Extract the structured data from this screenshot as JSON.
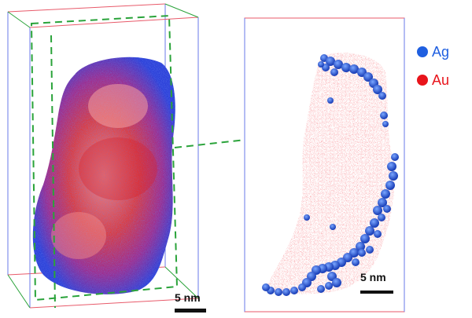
{
  "legend": {
    "items": [
      {
        "label": "Ag",
        "color": "#1f5fe0"
      },
      {
        "label": "Au",
        "color": "#e8141b"
      }
    ]
  },
  "left_panel": {
    "scalebar_label": "5 nm"
  },
  "right_panel": {
    "scalebar_label": "5 nm"
  },
  "colors": {
    "ag": "#1f5fe0",
    "au": "#e8141b",
    "box_red": "#e85a6a",
    "box_blue": "#6a78e8",
    "box_green": "#2aa33a",
    "dashed_green": "#2aa33a"
  }
}
